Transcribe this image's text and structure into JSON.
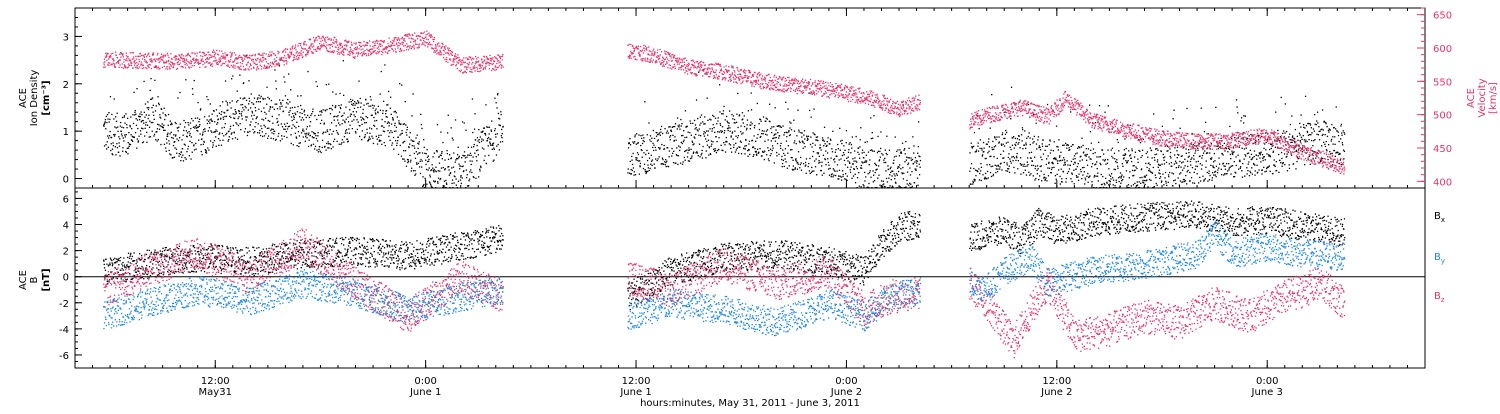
{
  "chart_data": [
    {
      "type": "scatter",
      "panel": "top",
      "ylabel_left": [
        "ACE",
        "Ion Density",
        "[cm⁻³]"
      ],
      "ylabel_right": [
        "ACE",
        "Velocity",
        "[km/s]"
      ],
      "yticks_left": [
        0,
        1,
        2,
        3
      ],
      "ylim_left": [
        -0.2,
        3.6
      ],
      "yticks_right": [
        400,
        450,
        500,
        550,
        600,
        650
      ],
      "ylim_right": [
        390,
        660
      ],
      "grid": false,
      "colors": {
        "density": "#000000",
        "velocity": "#e8336a"
      },
      "series": [
        {
          "key": "density",
          "axis": "left",
          "segments": [
            {
              "x": [
                1.6,
                3,
                4.5,
                6,
                8,
                10,
                12,
                14,
                16,
                18,
                20,
                22,
                24,
                24.4
              ],
              "y": [
                1.0,
                0.9,
                1.3,
                0.7,
                1.1,
                1.4,
                1.2,
                1.0,
                1.3,
                1.1,
                0.2,
                0.1,
                0.9,
                1.1
              ]
            },
            {
              "x": [
                31.5,
                33,
                35,
                37,
                39,
                41,
                43,
                45,
                47,
                48.2
              ],
              "y": [
                0.5,
                0.6,
                0.8,
                1.0,
                0.9,
                0.6,
                0.5,
                0.2,
                0.2,
                0.3
              ]
            },
            {
              "x": [
                51.0,
                53,
                55,
                57,
                59,
                61,
                63,
                65,
                67,
                69,
                71,
                72.4
              ],
              "y": [
                0.3,
                0.6,
                0.4,
                0.3,
                0.2,
                0.2,
                0.3,
                0.4,
                0.5,
                0.6,
                0.8,
                0.7
              ]
            }
          ]
        },
        {
          "key": "velocity",
          "axis": "right",
          "segments": [
            {
              "x": [
                1.6,
                4,
                6,
                8,
                10,
                12,
                14,
                16,
                18,
                20,
                22,
                24.4
              ],
              "y": [
                583,
                582,
                580,
                586,
                578,
                588,
                610,
                597,
                605,
                615,
                575,
                580
              ]
            },
            {
              "x": [
                31.5,
                33,
                35,
                37,
                39,
                41,
                43,
                45,
                47,
                48.2
              ],
              "y": [
                598,
                590,
                572,
                565,
                552,
                545,
                538,
                528,
                510,
                520
              ]
            },
            {
              "x": [
                51.0,
                52,
                54,
                55.5,
                56.5,
                58,
                60,
                62,
                64,
                66,
                68,
                70,
                72.4
              ],
              "y": [
                490,
                500,
                512,
                498,
                525,
                492,
                478,
                465,
                460,
                462,
                470,
                445,
                422
              ]
            }
          ]
        }
      ]
    },
    {
      "type": "scatter",
      "panel": "bottom",
      "ylabel": [
        "ACE",
        "B",
        "[nT]"
      ],
      "yticks": [
        -6,
        -4,
        -2,
        0,
        2,
        4,
        6
      ],
      "ylim": [
        -7,
        6.8
      ],
      "zero_line": true,
      "grid": false,
      "legend": [
        {
          "label": "B",
          "sub": "x",
          "color": "#000000"
        },
        {
          "label": "B",
          "sub": "y",
          "color": "#1e88e5"
        },
        {
          "label": "B",
          "sub": "z",
          "color": "#e8336a"
        }
      ],
      "series": [
        {
          "key": "Bx",
          "segments": [
            {
              "x": [
                1.6,
                4,
                7,
                10,
                13,
                16,
                19,
                22,
                24.4
              ],
              "y": [
                0.5,
                1.0,
                1.5,
                1.2,
                1.8,
                2.0,
                1.6,
                2.4,
                3.0
              ]
            },
            {
              "x": [
                31.5,
                34,
                37,
                40,
                43,
                45,
                46,
                47,
                48.2
              ],
              "y": [
                -1.5,
                0.5,
                1.5,
                1.8,
                1.2,
                0.5,
                2.5,
                3.8,
                4.1
              ]
            },
            {
              "x": [
                51.0,
                53,
                54,
                55,
                56,
                58,
                60,
                62,
                64,
                66,
                68,
                70,
                72.4
              ],
              "y": [
                3.0,
                3.6,
                2.8,
                4.3,
                3.5,
                4.2,
                4.5,
                4.7,
                4.8,
                4.2,
                4.4,
                3.9,
                3.4
              ]
            }
          ]
        },
        {
          "key": "By",
          "segments": [
            {
              "x": [
                1.6,
                4,
                7,
                10,
                13,
                16,
                19,
                22,
                24.4
              ],
              "y": [
                -3.0,
                -2.0,
                -1.0,
                -1.8,
                -0.5,
                -1.2,
                -2.5,
                -1.5,
                -1.0
              ]
            },
            {
              "x": [
                31.5,
                34,
                37,
                40,
                43,
                45,
                46.5,
                48.2
              ],
              "y": [
                -3.0,
                -2.0,
                -2.5,
                -3.5,
                -2.0,
                -3.0,
                -1.5,
                -1.0
              ]
            },
            {
              "x": [
                51.0,
                52,
                53,
                54.5,
                55.5,
                57,
                58,
                60,
                62,
                64,
                65,
                66,
                68,
                70,
                72.4
              ],
              "y": [
                -0.5,
                -0.8,
                0.5,
                1.5,
                -0.5,
                0.2,
                0.5,
                0.8,
                1.2,
                1.8,
                3.5,
                1.8,
                2.3,
                1.8,
                1.5
              ]
            }
          ]
        },
        {
          "key": "Bz",
          "segments": [
            {
              "x": [
                1.6,
                4,
                7,
                10,
                13,
                16,
                19,
                22,
                24.4
              ],
              "y": [
                -1.0,
                0.5,
                1.8,
                0.0,
                2.5,
                -0.5,
                -3.0,
                0.0,
                -1.5
              ]
            },
            {
              "x": [
                31.5,
                34,
                37,
                40,
                43,
                45,
                46.5,
                48.2
              ],
              "y": [
                0.0,
                -1.0,
                1.0,
                -0.5,
                0.5,
                -2.5,
                -1.5,
                -1.2
              ]
            },
            {
              "x": [
                51.0,
                52,
                53.5,
                54.5,
                55.5,
                57,
                59,
                61,
                63,
                65,
                67,
                69,
                71,
                72.4
              ],
              "y": [
                -0.5,
                -2.0,
                -5.0,
                -2.5,
                -0.5,
                -4.5,
                -4.0,
                -3.0,
                -3.5,
                -2.0,
                -3.0,
                -1.5,
                -0.5,
                -2.0
              ]
            }
          ]
        }
      ]
    }
  ],
  "x_axis": {
    "xlabel": "hours:minutes, May 31, 2011 - June  3, 2011",
    "xlim": [
      0,
      77
    ],
    "ticks": [
      {
        "x": 8,
        "time": "12:00",
        "date": "May31"
      },
      {
        "x": 20,
        "time": "0:00",
        "date": "June 1"
      },
      {
        "x": 32,
        "time": "12:00",
        "date": "June 1"
      },
      {
        "x": 44,
        "time": "0:00",
        "date": "June 2"
      },
      {
        "x": 56,
        "time": "12:00",
        "date": "June 2"
      },
      {
        "x": 68,
        "time": "0:00",
        "date": "June 3"
      }
    ],
    "minor_step": 1
  }
}
